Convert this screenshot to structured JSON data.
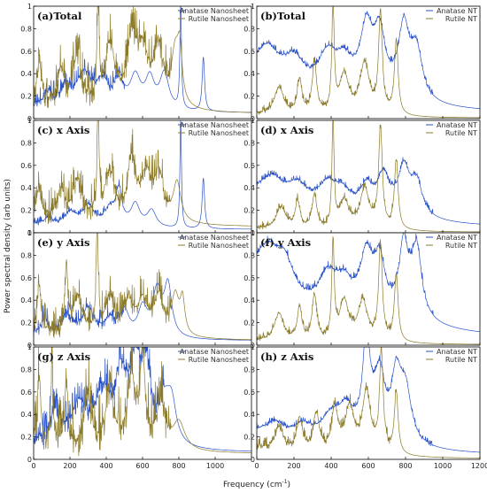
{
  "figure": {
    "ylabel": "Power spectral density (arb units)",
    "xlabel": "Frequency (cm",
    "xlabel_sup": "-1",
    "xlabel_close": ")"
  },
  "colors": {
    "anatase": "#2a52c9",
    "rutile": "#8b7a2a",
    "frame": "#000000"
  },
  "chart_data": [
    {
      "type": "line",
      "title": "(a)Total",
      "xlim": [
        0,
        1200
      ],
      "ylim": [
        0,
        1
      ],
      "xticks": [
        "0",
        "200",
        "400",
        "600",
        "800",
        "1000"
      ],
      "yticks": [
        "0",
        "0.2",
        "0.4",
        "0.6",
        "0.8",
        "1"
      ],
      "legend": "top-right",
      "series": [
        {
          "name": "Anatase Nanosheet",
          "color": "#2a52c9",
          "baseline": 0.05,
          "decay": 0.06,
          "decay_scale": 220,
          "noise": 0.12,
          "noise_until": 500,
          "peaks": [
            [
              80,
              0.12,
              25
            ],
            [
              180,
              0.18,
              40
            ],
            [
              280,
              0.3,
              50
            ],
            [
              380,
              0.22,
              40
            ],
            [
              470,
              0.25,
              30
            ],
            [
              560,
              0.28,
              35
            ],
            [
              640,
              0.26,
              30
            ],
            [
              720,
              0.32,
              30
            ],
            [
              810,
              0.97,
              5
            ],
            [
              935,
              0.48,
              8
            ]
          ]
        },
        {
          "name": "Rutile Nanosheet",
          "color": "#8b7a2a",
          "baseline": 0.04,
          "decay": 0.1,
          "decay_scale": 400,
          "noise": 0.25,
          "noise_until": 760,
          "peaks": [
            [
              30,
              0.42,
              12
            ],
            [
              150,
              0.3,
              20
            ],
            [
              240,
              0.42,
              30
            ],
            [
              355,
              0.92,
              7
            ],
            [
              420,
              0.55,
              30
            ],
            [
              540,
              0.55,
              30
            ],
            [
              600,
              0.48,
              40
            ],
            [
              690,
              0.5,
              30
            ],
            [
              780,
              0.46,
              25
            ],
            [
              805,
              0.42,
              15
            ]
          ]
        }
      ]
    },
    {
      "type": "line",
      "title": "(b)Total",
      "xlim": [
        0,
        1200
      ],
      "ylim": [
        0,
        1
      ],
      "xticks": [
        "0",
        "200",
        "400",
        "600",
        "800",
        "1000",
        "1200"
      ],
      "yticks": [
        "0",
        "0.2",
        "0.4",
        "0.6",
        "0.8",
        "1"
      ],
      "legend": "top-right",
      "series": [
        {
          "name": "Anatase NT",
          "color": "#2a52c9",
          "baseline": 0.16,
          "decay": 0.22,
          "decay_scale": 200,
          "noise": 0.04,
          "noise_until": 950,
          "tail_from": 800,
          "tail_scale": 260,
          "peaks": [
            [
              60,
              0.28,
              70
            ],
            [
              200,
              0.25,
              70
            ],
            [
              380,
              0.3,
              60
            ],
            [
              470,
              0.25,
              60
            ],
            [
              590,
              0.55,
              40
            ],
            [
              660,
              0.5,
              35
            ],
            [
              790,
              0.55,
              35
            ],
            [
              860,
              0.5,
              40
            ]
          ]
        },
        {
          "name": "Rutile NT",
          "color": "#8b7a2a",
          "baseline": 0.02,
          "decay": 0.02,
          "decay_scale": 100,
          "noise": 0.05,
          "noise_until": 760,
          "tail_from": 760,
          "tail_scale": 150,
          "peaks": [
            [
              120,
              0.25,
              30
            ],
            [
              230,
              0.3,
              15
            ],
            [
              310,
              0.45,
              15
            ],
            [
              410,
              0.92,
              8
            ],
            [
              470,
              0.35,
              30
            ],
            [
              580,
              0.45,
              30
            ],
            [
              665,
              0.88,
              12
            ],
            [
              750,
              0.65,
              12
            ]
          ]
        }
      ]
    },
    {
      "type": "line",
      "title": "(c) x Axis",
      "xlim": [
        0,
        1200
      ],
      "ylim": [
        0,
        1
      ],
      "xticks": [
        "0",
        "200",
        "400",
        "600",
        "800",
        "1000"
      ],
      "yticks": [
        "0",
        "0.2",
        "0.4",
        "0.6",
        "0.8",
        "1"
      ],
      "legend": "top-right",
      "series": [
        {
          "name": "Anatase Nanosheet",
          "color": "#2a52c9",
          "baseline": 0.03,
          "decay": 0.04,
          "decay_scale": 200,
          "noise": 0.05,
          "noise_until": 500,
          "peaks": [
            [
              80,
              0.06,
              30
            ],
            [
              200,
              0.12,
              40
            ],
            [
              300,
              0.18,
              40
            ],
            [
              420,
              0.15,
              40
            ],
            [
              470,
              0.3,
              20
            ],
            [
              560,
              0.2,
              30
            ],
            [
              650,
              0.15,
              30
            ],
            [
              810,
              0.97,
              5
            ],
            [
              935,
              0.45,
              8
            ]
          ]
        },
        {
          "name": "Rutile Nanosheet",
          "color": "#8b7a2a",
          "baseline": 0.05,
          "decay": 0.1,
          "decay_scale": 400,
          "noise": 0.22,
          "noise_until": 760,
          "peaks": [
            [
              30,
              0.3,
              12
            ],
            [
              150,
              0.25,
              20
            ],
            [
              240,
              0.35,
              30
            ],
            [
              355,
              0.95,
              7
            ],
            [
              420,
              0.45,
              30
            ],
            [
              540,
              0.55,
              25
            ],
            [
              620,
              0.4,
              35
            ],
            [
              690,
              0.4,
              30
            ],
            [
              790,
              0.35,
              25
            ]
          ]
        }
      ]
    },
    {
      "type": "line",
      "title": "(d) x Axis",
      "xlim": [
        0,
        1200
      ],
      "ylim": [
        0,
        1
      ],
      "xticks": [
        "0",
        "200",
        "400",
        "600",
        "800",
        "1000",
        "1200"
      ],
      "yticks": [
        "0",
        "0.2",
        "0.4",
        "0.6",
        "0.8",
        "1"
      ],
      "legend": "top-right",
      "series": [
        {
          "name": "Anatase NT",
          "color": "#2a52c9",
          "baseline": 0.15,
          "decay": 0.15,
          "decay_scale": 200,
          "noise": 0.04,
          "noise_until": 950,
          "tail_from": 800,
          "tail_scale": 240,
          "peaks": [
            [
              80,
              0.22,
              80
            ],
            [
              220,
              0.18,
              70
            ],
            [
              380,
              0.2,
              60
            ],
            [
              460,
              0.15,
              60
            ],
            [
              590,
              0.2,
              40
            ],
            [
              680,
              0.3,
              40
            ],
            [
              790,
              0.35,
              35
            ],
            [
              860,
              0.35,
              40
            ]
          ]
        },
        {
          "name": "Rutile NT",
          "color": "#8b7a2a",
          "baseline": 0.02,
          "decay": 0.02,
          "decay_scale": 100,
          "noise": 0.05,
          "noise_until": 760,
          "tail_from": 760,
          "tail_scale": 150,
          "peaks": [
            [
              130,
              0.2,
              30
            ],
            [
              220,
              0.25,
              15
            ],
            [
              310,
              0.3,
              15
            ],
            [
              410,
              0.95,
              7
            ],
            [
              470,
              0.25,
              30
            ],
            [
              580,
              0.35,
              30
            ],
            [
              665,
              0.88,
              12
            ],
            [
              750,
              0.6,
              12
            ]
          ]
        }
      ]
    },
    {
      "type": "line",
      "title": "(e) y Axis",
      "xlim": [
        0,
        1200
      ],
      "ylim": [
        0,
        1
      ],
      "xticks": [
        "0",
        "200",
        "400",
        "600",
        "800",
        "1000"
      ],
      "yticks": [
        "0",
        "0.2",
        "0.4",
        "0.6",
        "0.8",
        "1"
      ],
      "legend": "top-right",
      "series": [
        {
          "name": "Anatase Nanosheet",
          "color": "#2a52c9",
          "baseline": 0.04,
          "decay": 0.05,
          "decay_scale": 200,
          "noise": 0.12,
          "noise_until": 500,
          "peaks": [
            [
              60,
              0.15,
              20
            ],
            [
              180,
              0.2,
              40
            ],
            [
              300,
              0.25,
              40
            ],
            [
              420,
              0.15,
              40
            ],
            [
              500,
              0.22,
              30
            ],
            [
              600,
              0.25,
              30
            ],
            [
              680,
              0.4,
              30
            ],
            [
              740,
              0.45,
              25
            ]
          ]
        },
        {
          "name": "Rutile Nanosheet",
          "color": "#8b7a2a",
          "baseline": 0.04,
          "decay": 0.08,
          "decay_scale": 400,
          "noise": 0.2,
          "noise_until": 760,
          "peaks": [
            [
              30,
              0.4,
              12
            ],
            [
              180,
              0.6,
              8
            ],
            [
              240,
              0.35,
              30
            ],
            [
              350,
              0.92,
              7
            ],
            [
              420,
              0.35,
              30
            ],
            [
              520,
              0.3,
              30
            ],
            [
              600,
              0.3,
              35
            ],
            [
              690,
              0.35,
              30
            ],
            [
              780,
              0.35,
              25
            ],
            [
              820,
              0.3,
              15
            ]
          ]
        }
      ]
    },
    {
      "type": "line",
      "title": "(f) y Axis",
      "xlim": [
        0,
        1200
      ],
      "ylim": [
        0,
        1
      ],
      "xticks": [
        "0",
        "200",
        "400",
        "600",
        "800",
        "1000",
        "1200"
      ],
      "yticks": [
        "0",
        "0.2",
        "0.4",
        "0.6",
        "0.8",
        "1"
      ],
      "legend": "top-right",
      "series": [
        {
          "name": "Anatase NT",
          "color": "#2a52c9",
          "baseline": 0.2,
          "decay": 0.35,
          "decay_scale": 200,
          "noise": 0.05,
          "noise_until": 950,
          "tail_from": 860,
          "tail_scale": 280,
          "peaks": [
            [
              60,
              0.35,
              80
            ],
            [
              150,
              0.3,
              60
            ],
            [
              380,
              0.3,
              60
            ],
            [
              470,
              0.25,
              60
            ],
            [
              590,
              0.5,
              40
            ],
            [
              660,
              0.45,
              35
            ],
            [
              790,
              0.6,
              30
            ],
            [
              860,
              0.6,
              35
            ]
          ]
        },
        {
          "name": "Rutile NT",
          "color": "#8b7a2a",
          "baseline": 0.02,
          "decay": 0.02,
          "decay_scale": 100,
          "noise": 0.05,
          "noise_until": 760,
          "tail_from": 760,
          "tail_scale": 150,
          "peaks": [
            [
              120,
              0.25,
              30
            ],
            [
              230,
              0.3,
              15
            ],
            [
              310,
              0.4,
              15
            ],
            [
              410,
              0.85,
              8
            ],
            [
              470,
              0.35,
              30
            ],
            [
              570,
              0.35,
              30
            ],
            [
              665,
              0.85,
              12
            ],
            [
              750,
              0.6,
              12
            ]
          ]
        }
      ]
    },
    {
      "type": "line",
      "title": "(g) z Axis",
      "xlim": [
        0,
        1200
      ],
      "ylim": [
        0,
        1
      ],
      "xticks": [
        "0",
        "200",
        "400",
        "600",
        "800",
        "1000"
      ],
      "yticks": [
        "0",
        "0.2",
        "0.4",
        "0.6",
        "0.8",
        "1"
      ],
      "legend": "top-right",
      "series": [
        {
          "name": "Anatase Nanosheet",
          "color": "#2a52c9",
          "baseline": 0.06,
          "decay": 0.06,
          "decay_scale": 200,
          "noise": 0.22,
          "noise_until": 720,
          "peaks": [
            [
              120,
              0.3,
              40
            ],
            [
              250,
              0.35,
              50
            ],
            [
              380,
              0.45,
              50
            ],
            [
              480,
              0.55,
              40
            ],
            [
              560,
              0.65,
              40
            ],
            [
              620,
              0.6,
              30
            ],
            [
              720,
              0.35,
              40
            ],
            [
              760,
              0.32,
              30
            ]
          ]
        },
        {
          "name": "Rutile Nanosheet",
          "color": "#8b7a2a",
          "baseline": 0.05,
          "decay": 0.1,
          "decay_scale": 300,
          "noise": 0.35,
          "noise_until": 760,
          "peaks": [
            [
              30,
              0.6,
              10
            ],
            [
              100,
              0.55,
              10
            ],
            [
              180,
              0.6,
              10
            ],
            [
              300,
              0.5,
              20
            ],
            [
              420,
              0.55,
              25
            ],
            [
              540,
              0.6,
              30
            ],
            [
              600,
              0.8,
              15
            ],
            [
              700,
              0.4,
              30
            ],
            [
              800,
              0.25,
              40
            ]
          ]
        }
      ]
    },
    {
      "type": "line",
      "title": "(h) z Axis",
      "xlim": [
        0,
        1200
      ],
      "ylim": [
        0,
        1
      ],
      "xticks": [
        "0",
        "200",
        "400",
        "600",
        "800",
        "1000",
        "1200"
      ],
      "yticks": [
        "0",
        "0.2",
        "0.4",
        "0.6",
        "0.8",
        "1"
      ],
      "legend": "top-right",
      "series": [
        {
          "name": "Anatase NT",
          "color": "#2a52c9",
          "baseline": 0.12,
          "decay": 0.12,
          "decay_scale": 200,
          "noise": 0.04,
          "noise_until": 950,
          "tail_from": 800,
          "tail_scale": 240,
          "peaks": [
            [
              100,
              0.12,
              60
            ],
            [
              250,
              0.12,
              60
            ],
            [
              400,
              0.2,
              60
            ],
            [
              480,
              0.25,
              50
            ],
            [
              590,
              0.85,
              25
            ],
            [
              660,
              0.55,
              35
            ],
            [
              750,
              0.5,
              30
            ],
            [
              800,
              0.45,
              40
            ]
          ]
        },
        {
          "name": "Rutile NT",
          "color": "#8b7a2a",
          "baseline": 0.03,
          "decay": 0.08,
          "decay_scale": 100,
          "noise": 0.08,
          "noise_until": 760,
          "tail_from": 760,
          "tail_scale": 150,
          "peaks": [
            [
              120,
              0.22,
              30
            ],
            [
              230,
              0.3,
              20
            ],
            [
              320,
              0.35,
              20
            ],
            [
              420,
              0.4,
              20
            ],
            [
              500,
              0.4,
              30
            ],
            [
              590,
              0.55,
              25
            ],
            [
              670,
              0.9,
              12
            ],
            [
              750,
              0.55,
              12
            ]
          ]
        }
      ]
    }
  ]
}
